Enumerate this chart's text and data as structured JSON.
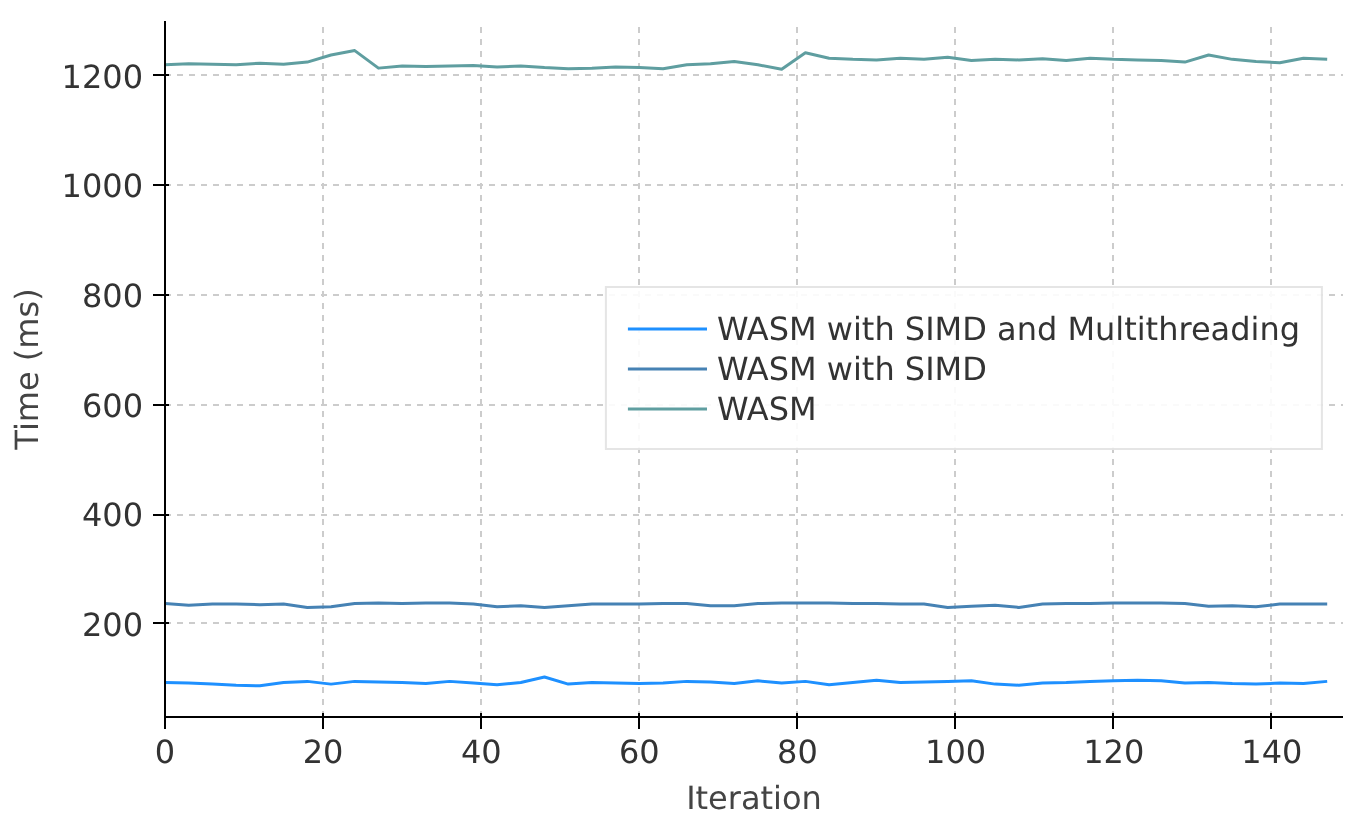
{
  "chart_data": {
    "type": "line",
    "xlabel": "Iteration",
    "ylabel": "Time (ms)",
    "x": [
      0,
      3,
      6,
      9,
      12,
      15,
      18,
      21,
      24,
      27,
      30,
      33,
      36,
      39,
      42,
      45,
      48,
      51,
      54,
      57,
      60,
      63,
      66,
      69,
      72,
      75,
      78,
      81,
      84,
      87,
      90,
      93,
      96,
      99,
      102,
      105,
      108,
      111,
      114,
      117,
      120,
      123,
      126,
      129,
      132,
      135,
      138,
      141,
      144,
      147
    ],
    "series": [
      {
        "name": "WASM with SIMD and Multithreading",
        "color": "#1e90ff",
        "values": [
          93,
          92,
          90,
          88,
          87,
          93,
          95,
          90,
          95,
          94,
          93,
          91,
          95,
          92,
          89,
          93,
          103,
          90,
          93,
          92,
          91,
          92,
          95,
          94,
          91,
          96,
          92,
          95,
          89,
          93,
          97,
          93,
          94,
          95,
          96,
          90,
          88,
          92,
          93,
          95,
          96,
          97,
          96,
          92,
          93,
          91,
          90,
          92,
          91,
          95
        ]
      },
      {
        "name": "WASM with SIMD",
        "color": "#4682b4",
        "values": [
          237,
          234,
          236,
          236,
          235,
          236,
          230,
          231,
          237,
          238,
          237,
          238,
          238,
          236,
          231,
          233,
          230,
          233,
          236,
          236,
          236,
          237,
          237,
          233,
          233,
          237,
          238,
          238,
          238,
          237,
          237,
          236,
          236,
          230,
          232,
          234,
          230,
          236,
          237,
          237,
          238,
          238,
          238,
          237,
          232,
          233,
          231,
          236,
          236,
          236
        ]
      },
      {
        "name": "WASM",
        "color": "#5f9ea0",
        "values": [
          1220,
          1222,
          1221,
          1220,
          1223,
          1221,
          1225,
          1238,
          1246,
          1214,
          1218,
          1217,
          1218,
          1219,
          1216,
          1218,
          1215,
          1213,
          1214,
          1216,
          1215,
          1213,
          1220,
          1222,
          1226,
          1220,
          1212,
          1242,
          1232,
          1230,
          1229,
          1232,
          1230,
          1234,
          1228,
          1230,
          1229,
          1231,
          1228,
          1232,
          1230,
          1229,
          1228,
          1225,
          1238,
          1230,
          1226,
          1224,
          1232,
          1230
        ]
      }
    ],
    "xlim": [
      0,
      149
    ],
    "ylim": [
      30,
      1300
    ],
    "xticks": [
      0,
      20,
      40,
      60,
      80,
      100,
      120,
      140
    ],
    "yticks": [
      200,
      400,
      600,
      800,
      1000,
      1200
    ],
    "grid": true,
    "legend": "right",
    "line_style": "solid"
  }
}
